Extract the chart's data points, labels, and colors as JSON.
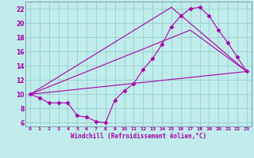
{
  "xlabel": "Windchill (Refroidissement éolien,°C)",
  "background_color": "#c0ecec",
  "line_color": "#aa00aa",
  "grid_color": "#90c8c8",
  "xlim": [
    -0.5,
    23.5
  ],
  "ylim": [
    5.5,
    23.0
  ],
  "xticks": [
    0,
    1,
    2,
    3,
    4,
    5,
    6,
    7,
    8,
    9,
    10,
    11,
    12,
    13,
    14,
    15,
    16,
    17,
    18,
    19,
    20,
    21,
    22,
    23
  ],
  "yticks": [
    6,
    8,
    10,
    12,
    14,
    16,
    18,
    20,
    22
  ],
  "line1_x": [
    0,
    1,
    2,
    3,
    4,
    5,
    6,
    7,
    8,
    9,
    10,
    11,
    12,
    13,
    14,
    15,
    16,
    17,
    18,
    19,
    20,
    21,
    22,
    23
  ],
  "line1_y": [
    10.0,
    9.5,
    8.8,
    8.8,
    8.8,
    7.0,
    6.8,
    6.2,
    6.0,
    9.2,
    10.5,
    11.5,
    13.5,
    15.0,
    17.0,
    19.5,
    21.0,
    22.0,
    22.2,
    21.0,
    19.0,
    17.2,
    15.2,
    13.2
  ],
  "line2_x": [
    0,
    15,
    23
  ],
  "line2_y": [
    10.0,
    22.2,
    13.2
  ],
  "line3_x": [
    0,
    17,
    23
  ],
  "line3_y": [
    10.0,
    19.0,
    13.2
  ],
  "line4_x": [
    0,
    23
  ],
  "line4_y": [
    10.0,
    13.2
  ],
  "marker": "D",
  "markersize": 2.5
}
